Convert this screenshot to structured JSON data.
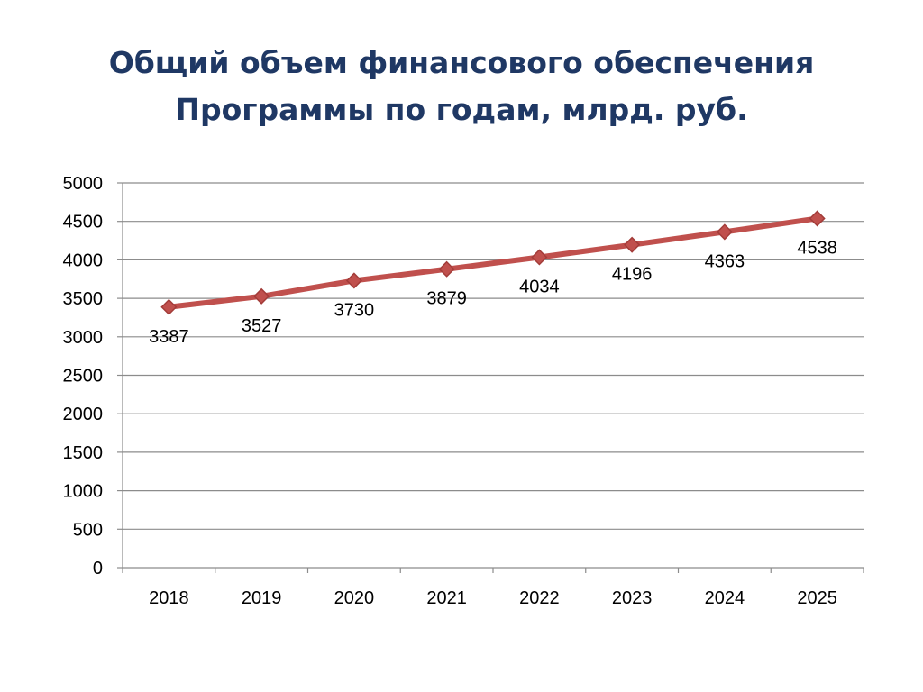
{
  "slide": {
    "title_line1": "Общий объем финансового обеспечения",
    "title_line2": "Программы по годам, млрд. руб."
  },
  "colors": {
    "title": "#1f3864",
    "line": "#c0504d",
    "marker": "#c0504d",
    "grid": "#8c8c8c"
  },
  "chart_data": {
    "type": "line",
    "title": "Общий объем финансового обеспечения Программы по годам, млрд. руб.",
    "xlabel": "",
    "ylabel": "",
    "categories": [
      "2018",
      "2019",
      "2020",
      "2021",
      "2022",
      "2023",
      "2024",
      "2025"
    ],
    "series": [
      {
        "values": [
          3387,
          3527,
          3730,
          3879,
          4034,
          4196,
          4363,
          4538
        ],
        "data_labels": [
          "3387",
          "3527",
          "3730",
          "3879",
          "4034",
          "4196",
          "4363",
          "4538"
        ],
        "marker": "diamond"
      }
    ],
    "ylim": [
      0,
      5000
    ],
    "yticks": [
      0,
      500,
      1000,
      1500,
      2000,
      2500,
      3000,
      3500,
      4000,
      4500,
      5000
    ],
    "ytick_labels": [
      "0",
      "500",
      "1000",
      "1500",
      "2000",
      "2500",
      "3000",
      "3500",
      "4000",
      "4500",
      "5000"
    ],
    "grid": "horizontal",
    "legend": "none"
  }
}
